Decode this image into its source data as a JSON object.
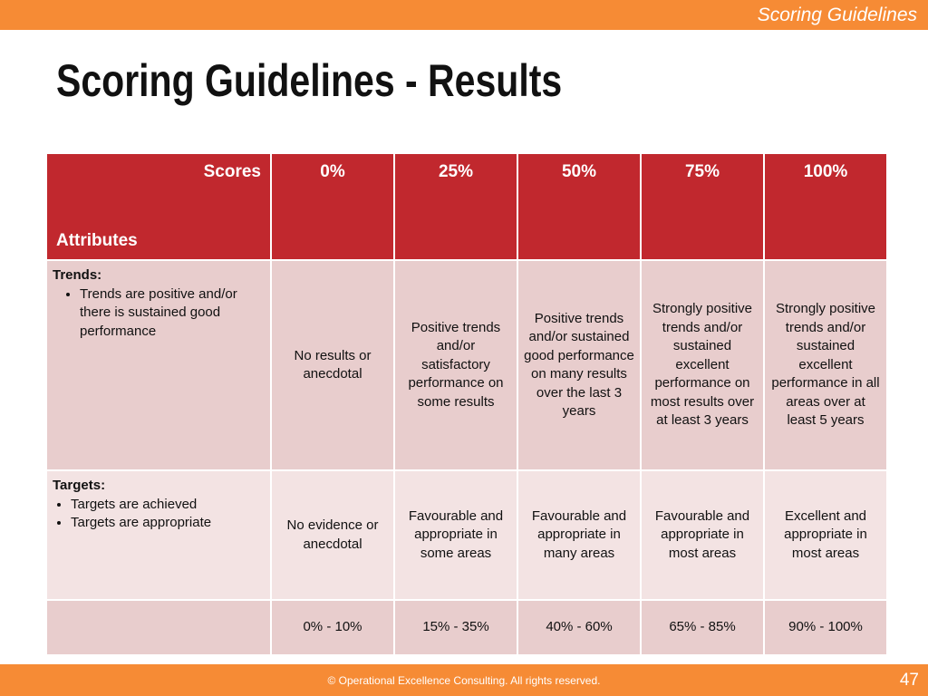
{
  "header": {
    "section": "Scoring Guidelines",
    "title": "Scoring Guidelines - Results"
  },
  "table": {
    "corner": {
      "top": "Scores",
      "bottom": "Attributes"
    },
    "columns": [
      "0%",
      "25%",
      "50%",
      "75%",
      "100%"
    ],
    "rows": [
      {
        "label": "Trends:",
        "bullets": [
          "Trends are positive and/or there is sustained good performance"
        ],
        "cells": [
          "No results or anecdotal",
          "Positive trends and/or satisfactory performance on some results",
          "Positive trends and/or sustained good performance on many results over the last 3 years",
          "Strongly positive trends and/or sustained excellent performance on most results over at least 3 years",
          "Strongly positive trends and/or sustained excellent performance in all areas over at least 5 years"
        ]
      },
      {
        "label": "Targets:",
        "bullets": [
          "Targets are achieved",
          "Targets are appropriate"
        ],
        "cells": [
          "No evidence or anecdotal",
          "Favourable and appropriate in some areas",
          "Favourable and appropriate in many areas",
          "Favourable and appropriate in most areas",
          "Excellent and appropriate in most areas"
        ]
      },
      {
        "cells": [
          "0% - 10%",
          "15% - 35%",
          "40% - 60%",
          "65% - 85%",
          "90% - 100%"
        ]
      }
    ]
  },
  "footer": {
    "copyright": "© Operational Excellence Consulting.  All rights reserved.",
    "page": "47"
  }
}
